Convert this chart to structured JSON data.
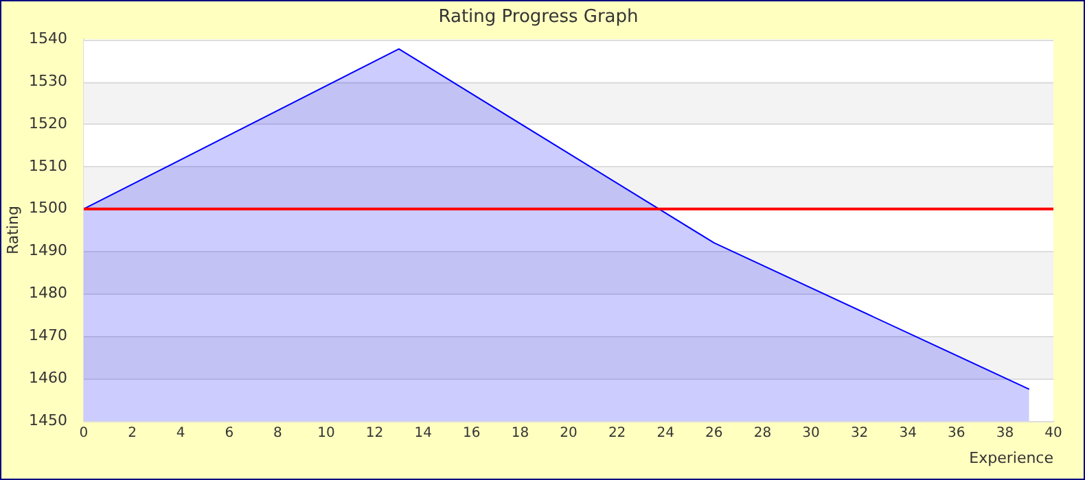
{
  "chart_data": {
    "type": "area",
    "title": "Rating Progress Graph",
    "xlabel": "Experience",
    "ylabel": "Rating",
    "series": [
      {
        "color": "#0000ff",
        "x": [
          0,
          13,
          26,
          39
        ],
        "values": [
          1500,
          1537.7,
          1492,
          1457.5
        ]
      }
    ],
    "xlim": [
      0,
      40
    ],
    "xticks": [
      0,
      2,
      4,
      6,
      8,
      10,
      12,
      14,
      16,
      18,
      20,
      22,
      24,
      26,
      28,
      30,
      32,
      34,
      36,
      38,
      40
    ],
    "ylim": [
      1450,
      1540
    ],
    "yticks": [
      1450,
      1460,
      1470,
      1480,
      1490,
      1500,
      1510,
      1520,
      1530,
      1540
    ],
    "grid": "y",
    "legend": false,
    "ref_lines": [
      {
        "axis": "y",
        "value": 1500,
        "color": "#ff0000"
      }
    ]
  }
}
